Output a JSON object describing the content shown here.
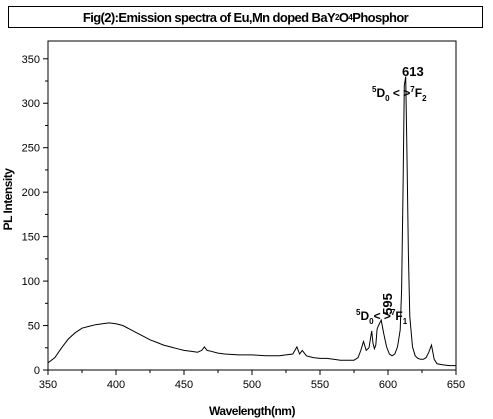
{
  "chart_data": {
    "type": "line",
    "title": {
      "parts": [
        {
          "t": "Fig(2):Emission spectra of Eu,Mn doped BaY",
          "sub": false
        },
        {
          "t": "2",
          "sub": true
        },
        {
          "t": "O",
          "sub": false
        },
        {
          "t": "4",
          "sub": true
        },
        {
          "t": "Phosphor",
          "sub": false
        }
      ]
    },
    "xlabel": "Wavelength(nm)",
    "ylabel": "PL Intensity",
    "xlim": [
      350,
      650
    ],
    "ylim": [
      0,
      370
    ],
    "xticks": [
      350,
      400,
      450,
      500,
      550,
      600,
      650
    ],
    "yticks": [
      0,
      50,
      100,
      150,
      200,
      250,
      300,
      350
    ],
    "grid": false,
    "series": [
      {
        "color": "#000000",
        "x": [
          350,
          355,
          360,
          365,
          370,
          375,
          380,
          385,
          390,
          395,
          400,
          405,
          410,
          415,
          420,
          425,
          430,
          435,
          440,
          445,
          450,
          455,
          460,
          463,
          465,
          467,
          470,
          475,
          480,
          490,
          500,
          510,
          520,
          530,
          533,
          535,
          537,
          540,
          545,
          550,
          555,
          560,
          565,
          570,
          575,
          578,
          580,
          582,
          584,
          586,
          588,
          589,
          590,
          591,
          592,
          593,
          595,
          597,
          599,
          601,
          603,
          605,
          607,
          609,
          610,
          611,
          612,
          613,
          614,
          615,
          616,
          618,
          620,
          622,
          624,
          626,
          628,
          630,
          632,
          634,
          636,
          640,
          645,
          650
        ],
        "y": [
          8,
          14,
          25,
          35,
          42,
          47,
          49,
          51,
          52,
          53,
          52,
          50,
          46,
          42,
          38,
          34,
          31,
          28,
          26,
          24,
          22,
          21,
          20,
          22,
          26,
          22,
          21,
          19,
          18,
          17,
          17,
          16,
          16,
          18,
          26,
          18,
          22,
          16,
          14,
          13,
          13,
          12,
          11,
          11,
          11,
          14,
          22,
          32,
          22,
          25,
          44,
          30,
          24,
          28,
          46,
          50,
          56,
          40,
          26,
          18,
          16,
          18,
          26,
          45,
          90,
          200,
          320,
          330,
          240,
          130,
          60,
          26,
          16,
          13,
          12,
          12,
          14,
          20,
          28,
          12,
          7,
          6,
          5,
          5
        ]
      }
    ],
    "annotations": [
      {
        "peak": "613",
        "label": {
          "a": "5",
          "b": "D",
          "c": "0",
          "arrow": " < >",
          "d": "7",
          "e": "F",
          "f": "2"
        }
      },
      {
        "peak": "595",
        "label": {
          "a": "5",
          "b": "D",
          "c": "0",
          "arrow": "< >",
          "d": "7",
          "e": "F",
          "f": "1"
        }
      }
    ]
  }
}
